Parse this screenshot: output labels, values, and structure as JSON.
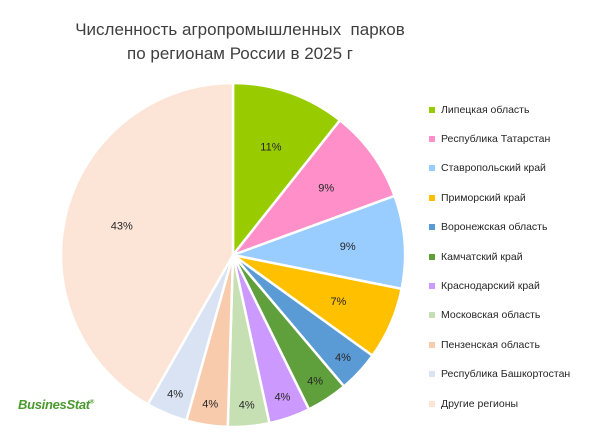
{
  "chart_data": {
    "type": "pie",
    "title_lines": [
      "Численность агропромышленных  парков",
      "по регионам России в 2025 г"
    ],
    "slices": [
      {
        "name": "Липецкая область",
        "value": 11,
        "label": "11%",
        "color": "#99cc00"
      },
      {
        "name": "Республика Татарстан",
        "value": 9,
        "label": "9%",
        "color": "#ff8fc8"
      },
      {
        "name": "Ставропольский край",
        "value": 9,
        "label": "9%",
        "color": "#99ccff"
      },
      {
        "name": "Приморский край",
        "value": 7,
        "label": "7%",
        "color": "#ffc000"
      },
      {
        "name": "Воронежская область",
        "value": 4,
        "label": "4%",
        "color": "#5b9bd5"
      },
      {
        "name": "Камчатский край",
        "value": 4,
        "label": "4%",
        "color": "#5fa03c"
      },
      {
        "name": "Краснодарский край",
        "value": 4,
        "label": "4%",
        "color": "#cc99ff"
      },
      {
        "name": "Московская область",
        "value": 4,
        "label": "4%",
        "color": "#c6e0b4"
      },
      {
        "name": "Пензенская область",
        "value": 4,
        "label": "4%",
        "color": "#f8cbad"
      },
      {
        "name": "Республика Башкортостан",
        "value": 4,
        "label": "4%",
        "color": "#dae3f3"
      },
      {
        "name": "Другие регионы",
        "value": 43,
        "label": "43%",
        "color": "#fce4d6"
      }
    ],
    "start_angle_deg": 0,
    "direction": "clockwise",
    "legend_position": "right"
  },
  "logo": {
    "text": "BusinesStat",
    "mark": "®"
  }
}
